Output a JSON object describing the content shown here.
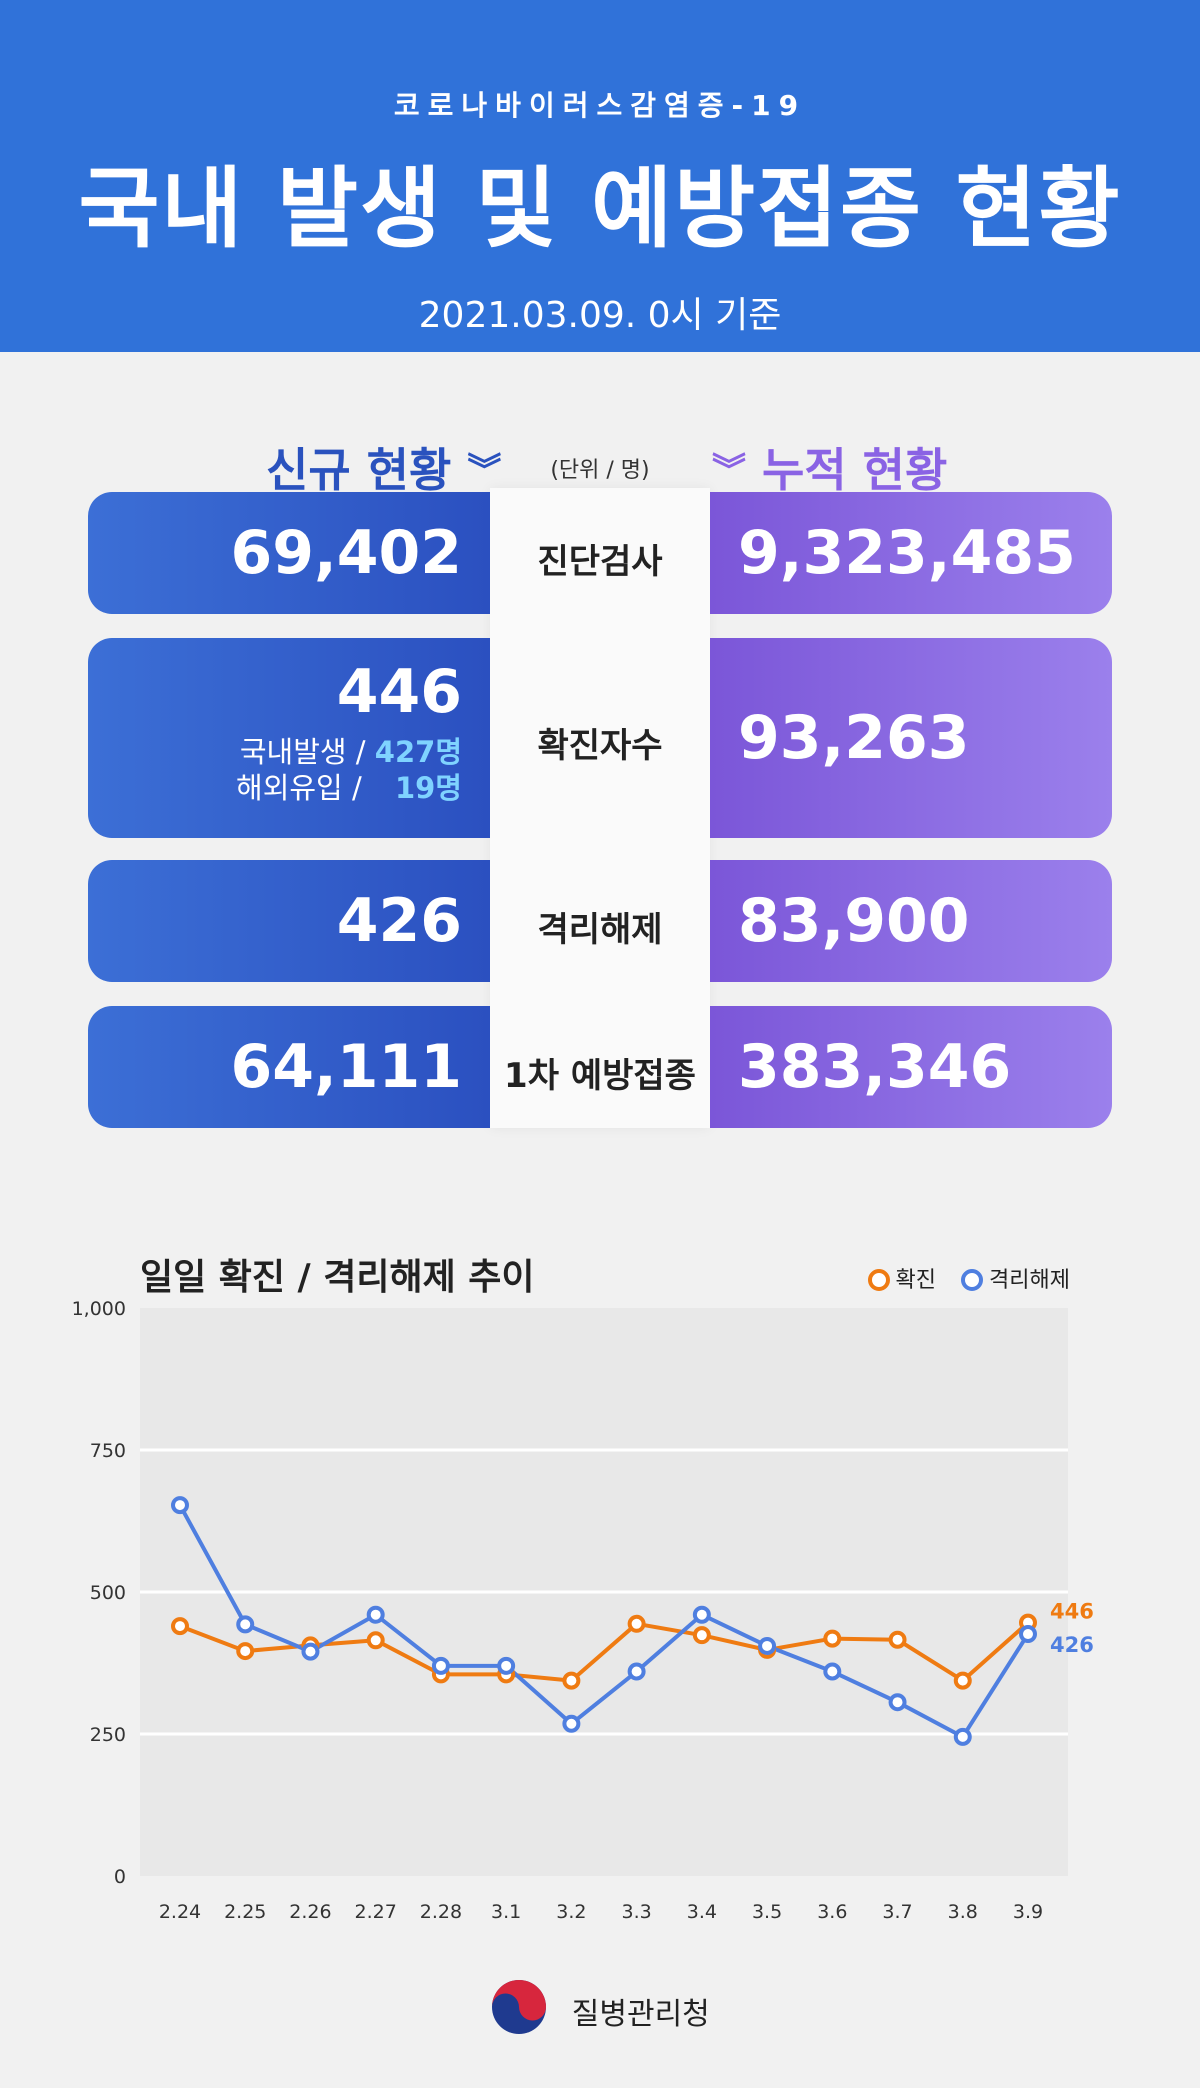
{
  "header": {
    "subtitle": "코로나바이러스감염증-19",
    "title": "국내 발생 및 예방접종 현황",
    "date": "2021.03.09. 0시 기준"
  },
  "sections": {
    "new_title": "신규 현황",
    "cumulative_title": "누적 현황",
    "chevron": "»",
    "unit": "(단위 / 명)"
  },
  "rows": [
    {
      "label": "진단검사",
      "new": "69,402",
      "cumulative": "9,323,485"
    },
    {
      "label": "확진자수",
      "new": "446",
      "cumulative": "93,263",
      "domestic_label": "국내발생 /",
      "domestic_value": "427명",
      "overseas_label": "해외유입 /",
      "overseas_value": "19명"
    },
    {
      "label": "격리해제",
      "new": "426",
      "cumulative": "83,900"
    },
    {
      "label": "1차 예방접종",
      "new": "64,111",
      "cumulative": "383,346"
    }
  ],
  "colors": {
    "header_bg": "#3072d9",
    "confirmed": "#ef7b12",
    "released": "#4f7fe0"
  },
  "chart_data": {
    "type": "line",
    "title": "일일 확진 / 격리해제 추이",
    "categories": [
      "2.24",
      "2.25",
      "2.26",
      "2.27",
      "2.28",
      "3.1",
      "3.2",
      "3.3",
      "3.4",
      "3.5",
      "3.6",
      "3.7",
      "3.8",
      "3.9"
    ],
    "series": [
      {
        "name": "확진",
        "values": [
          440,
          396,
          406,
          415,
          355,
          355,
          344,
          444,
          424,
          398,
          418,
          416,
          344,
          446
        ]
      },
      {
        "name": "격리해제",
        "values": [
          653,
          443,
          395,
          460,
          370,
          370,
          268,
          360,
          460,
          405,
          360,
          306,
          245,
          426
        ]
      }
    ],
    "end_labels": [
      "446",
      "426"
    ],
    "yticks": [
      "0",
      "250",
      "500",
      "750",
      "1,000"
    ],
    "ylim": [
      0,
      1000
    ],
    "legend_position": "top-right"
  },
  "footer": {
    "agency": "질병관리청"
  }
}
